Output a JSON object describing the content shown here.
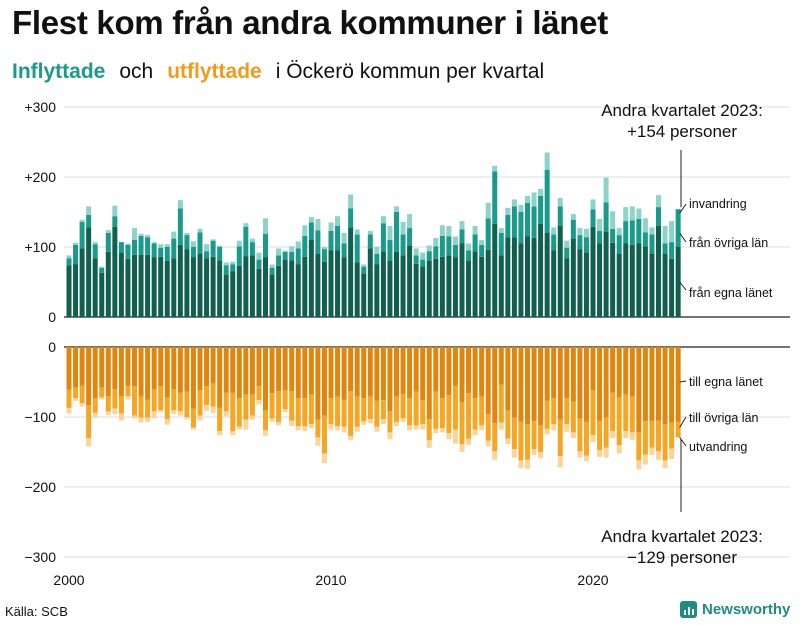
{
  "title": "Flest kom från andra kommuner i länet",
  "subtitle": {
    "inflyttade": "Inflyttade",
    "och": "och",
    "utflyttade": "utflyttade",
    "rest": "i Öckerö  kommun  per  kvartal"
  },
  "source": "Källa: SCB",
  "brand": "Newsworthy",
  "colors": {
    "in_own_county": "#11604f",
    "in_other_counties": "#1a9a8a",
    "in_immigration": "#8cd4c8",
    "out_own_county": "#e0860f",
    "out_other_counties": "#f5a623",
    "out_emigration": "#fbd49a"
  },
  "chart_data": {
    "type": "bar",
    "stacked": true,
    "x_axis": {
      "ticks": [
        "2000",
        "2010",
        "2020"
      ],
      "first_period": "2000 Q1",
      "last_period": "2023 Q2",
      "periods": 94
    },
    "y_axis": {
      "ticks": [
        "+300",
        "+200",
        "+100",
        "0",
        "0",
        "−100",
        "−200",
        "−300"
      ],
      "ylim": [
        -300,
        300
      ]
    },
    "inflows": {
      "series_labels": [
        "från egna länet",
        "från övriga län",
        "invandring"
      ],
      "own_county": [
        74,
        75,
        98,
        128,
        84,
        63,
        93,
        129,
        92,
        83,
        89,
        89,
        89,
        85,
        86,
        80,
        84,
        103,
        97,
        85,
        91,
        84,
        86,
        80,
        60,
        65,
        73,
        87,
        88,
        69,
        85,
        60,
        73,
        82,
        81,
        75,
        86,
        110,
        90,
        79,
        95,
        95,
        85,
        128,
        78,
        62,
        98,
        75,
        94,
        80,
        93,
        88,
        102,
        76,
        72,
        80,
        83,
        86,
        88,
        85,
        105,
        80,
        94,
        86,
        96,
        133,
        88,
        114,
        114,
        105,
        115,
        113,
        133,
        120,
        95,
        130,
        84,
        112,
        97,
        92,
        129,
        105,
        122,
        106,
        90,
        105,
        103,
        105,
        101,
        91,
        130,
        90,
        83,
        100
      ],
      "other_counties": [
        10,
        28,
        38,
        18,
        20,
        7,
        27,
        15,
        15,
        20,
        21,
        27,
        25,
        20,
        13,
        20,
        28,
        52,
        20,
        15,
        30,
        10,
        23,
        20,
        14,
        10,
        28,
        42,
        19,
        13,
        34,
        10,
        15,
        11,
        12,
        23,
        30,
        25,
        34,
        18,
        28,
        35,
        20,
        27,
        40,
        10,
        20,
        15,
        40,
        30,
        57,
        30,
        25,
        12,
        10,
        14,
        18,
        30,
        27,
        18,
        20,
        15,
        24,
        17,
        45,
        75,
        32,
        32,
        44,
        45,
        48,
        45,
        40,
        90,
        23,
        28,
        15,
        27,
        20,
        22,
        25,
        18,
        42,
        20,
        27,
        32,
        35,
        35,
        20,
        27,
        27,
        15,
        24,
        54
      ],
      "immigration": [
        4,
        3,
        3,
        12,
        3,
        2,
        4,
        15,
        0,
        2,
        17,
        3,
        3,
        2,
        5,
        4,
        10,
        12,
        3,
        8,
        5,
        10,
        2,
        2,
        4,
        4,
        8,
        5,
        5,
        10,
        22,
        5,
        10,
        2,
        8,
        10,
        15,
        8,
        16,
        3,
        12,
        14,
        15,
        20,
        7,
        3,
        5,
        10,
        10,
        20,
        8,
        18,
        20,
        10,
        10,
        8,
        12,
        15,
        15,
        12,
        12,
        10,
        12,
        7,
        22,
        8,
        7,
        10,
        10,
        10,
        10,
        20,
        10,
        25,
        10,
        12,
        10,
        8,
        10,
        12,
        14,
        17,
        35,
        25,
        10,
        20,
        20,
        15,
        20,
        10,
        17,
        25,
        30,
        0
      ]
    },
    "outflows": {
      "series_labels": [
        "till egna länet",
        "till övriga län",
        "utvandring"
      ],
      "own_county": [
        -61,
        -58,
        -55,
        -83,
        -73,
        -58,
        -70,
        -60,
        -70,
        -55,
        -56,
        -71,
        -75,
        -61,
        -56,
        -72,
        -60,
        -65,
        -64,
        -88,
        -62,
        -56,
        -52,
        -87,
        -65,
        -65,
        -73,
        -68,
        -68,
        -56,
        -90,
        -66,
        -63,
        -62,
        -63,
        -73,
        -73,
        -68,
        -104,
        -98,
        -73,
        -71,
        -75,
        -63,
        -71,
        -73,
        -71,
        -77,
        -76,
        -92,
        -71,
        -67,
        -73,
        -64,
        -76,
        -103,
        -64,
        -73,
        -69,
        -55,
        -79,
        -66,
        -73,
        -71,
        -96,
        -109,
        -54,
        -91,
        -101,
        -107,
        -110,
        -106,
        -112,
        -77,
        -73,
        -104,
        -73,
        -78,
        -102,
        -107,
        -62,
        -105,
        -100,
        -65,
        -72,
        -68,
        -71,
        -122,
        -106,
        -106,
        -105,
        -111,
        -108,
        -107
      ],
      "other_counties": [
        -26,
        -15,
        -25,
        -47,
        -21,
        -14,
        -22,
        -28,
        -25,
        -15,
        -42,
        -30,
        -26,
        -31,
        -34,
        -31,
        -30,
        -27,
        -36,
        -27,
        -36,
        -27,
        -33,
        -33,
        -27,
        -55,
        -41,
        -36,
        -30,
        -20,
        -29,
        -36,
        -44,
        -27,
        -42,
        -40,
        -40,
        -42,
        -25,
        -54,
        -37,
        -42,
        -39,
        -64,
        -43,
        -33,
        -32,
        -37,
        -27,
        -30,
        -36,
        -35,
        -39,
        -48,
        -34,
        -30,
        -53,
        -43,
        -54,
        -63,
        -60,
        -65,
        -45,
        -41,
        -38,
        -40,
        -54,
        -40,
        -45,
        -55,
        -51,
        -40,
        -38,
        -40,
        -37,
        -52,
        -37,
        -44,
        -47,
        -48,
        -64,
        -42,
        -44,
        -55,
        -68,
        -52,
        -51,
        -40,
        -48,
        -38,
        -44,
        -51,
        -37,
        -22
      ],
      "emigration": [
        -8,
        -4,
        -5,
        -12,
        -7,
        -3,
        -5,
        -8,
        -10,
        -5,
        -4,
        -7,
        -6,
        -10,
        -3,
        -8,
        -6,
        -6,
        -3,
        -3,
        -7,
        -8,
        -9,
        -6,
        -7,
        -6,
        -4,
        -14,
        -6,
        -6,
        -8,
        -5,
        -5,
        -4,
        -8,
        -6,
        -7,
        -6,
        -12,
        -14,
        -8,
        -6,
        -8,
        -6,
        -7,
        -5,
        -6,
        -7,
        -7,
        -10,
        -6,
        -5,
        -7,
        -6,
        -8,
        -11,
        -6,
        -6,
        -9,
        -20,
        -11,
        -9,
        -8,
        -7,
        -8,
        -12,
        -10,
        -8,
        -12,
        -11,
        -13,
        -8,
        -9,
        -8,
        -9,
        -16,
        -11,
        -8,
        -9,
        -8,
        -10,
        -10,
        -14,
        -10,
        -12,
        -10,
        -11,
        -13,
        -14,
        -10,
        -12,
        -11,
        -15,
        0
      ]
    },
    "annotations": {
      "in_top": "Andra kvartalet 2023:",
      "in_value": "+154 personer",
      "out_top": "Andra kvartalet 2023:",
      "out_value": "−129 personer"
    }
  }
}
